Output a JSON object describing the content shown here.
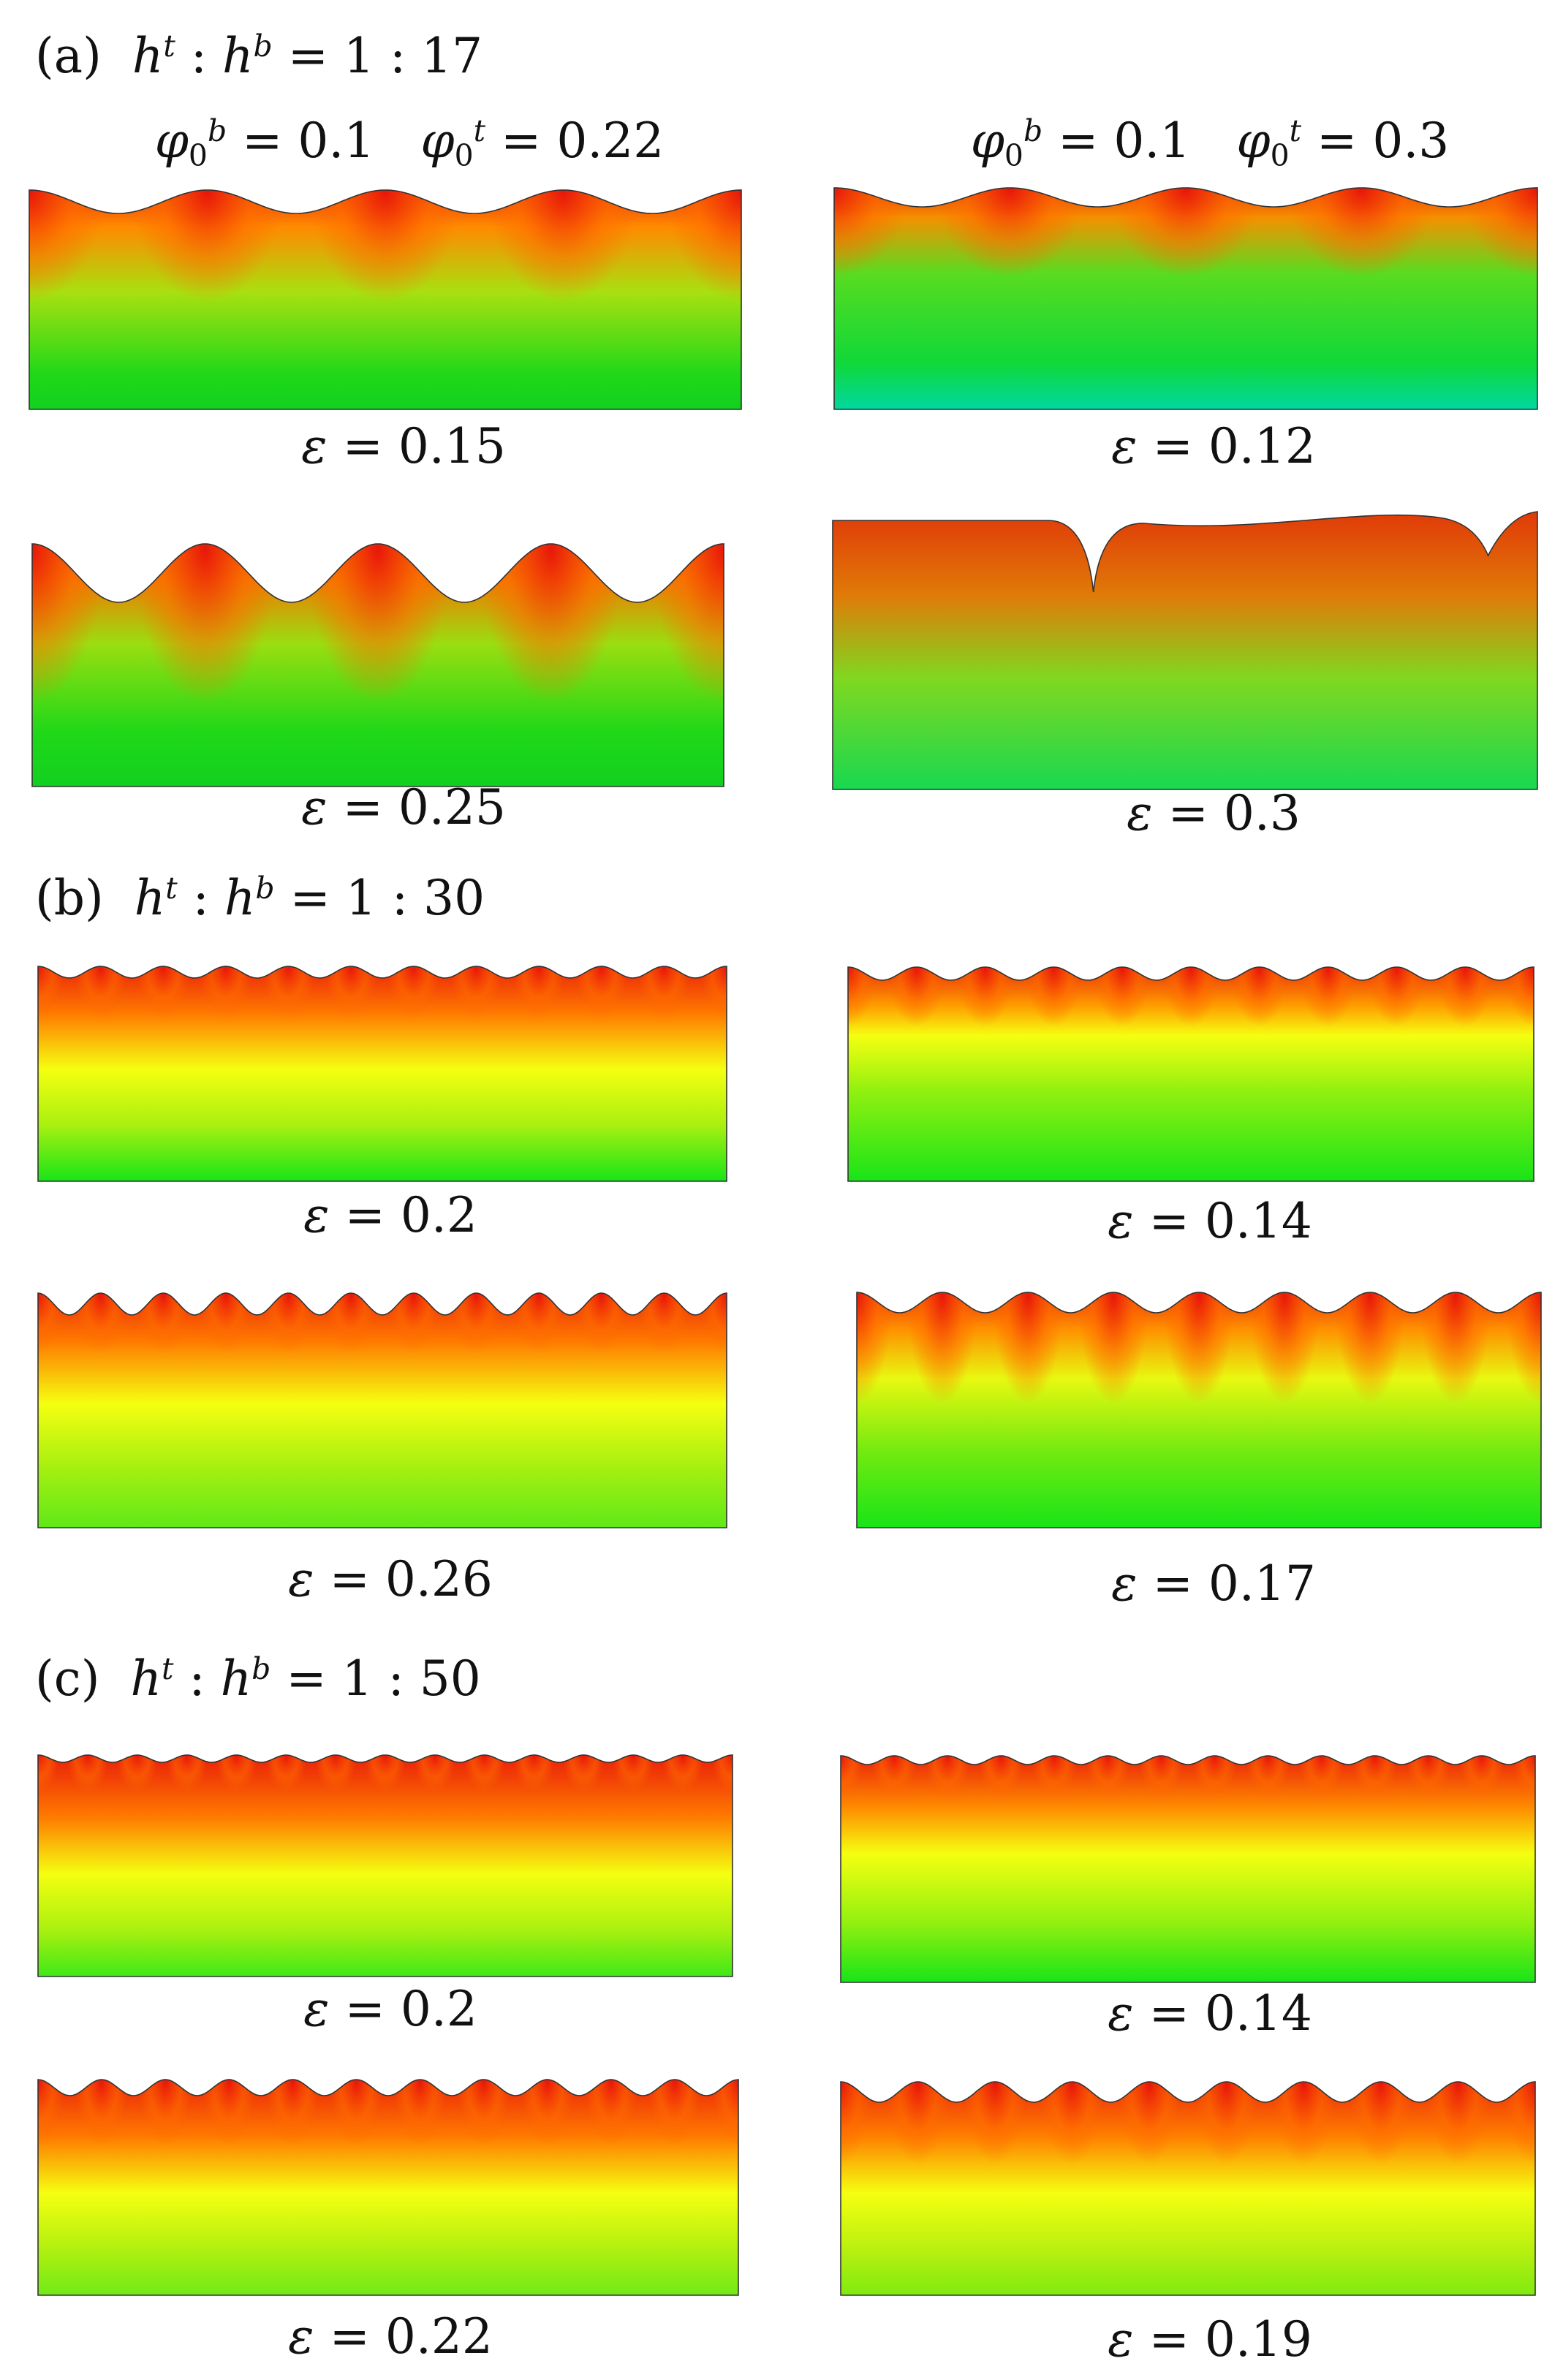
{
  "sections": [
    {
      "label": "(a)",
      "ratio": "1 : 17"
    },
    {
      "label": "(b)",
      "ratio": "1 : 30"
    },
    {
      "label": "(c)",
      "ratio": "1 : 50"
    }
  ],
  "columns": [
    {
      "phi_b": "0.1",
      "phi_t": "0.22"
    },
    {
      "phi_b": "0.1",
      "phi_t": "0.3"
    }
  ],
  "symbols": {
    "h": "h",
    "t": "t",
    "b": "b",
    "phi": "φ",
    "zero": "0",
    "eps": "ε",
    "eq": "=",
    "colon": ":"
  },
  "panels": [
    {
      "strain": "0.15"
    },
    {
      "strain": "0.12"
    },
    {
      "strain": "0.25"
    },
    {
      "strain": "0.3"
    },
    {
      "strain": "0.2"
    },
    {
      "strain": "0.14"
    },
    {
      "strain": "0.26"
    },
    {
      "strain": "0.17"
    },
    {
      "strain": "0.2"
    },
    {
      "strain": "0.14"
    },
    {
      "strain": "0.22"
    },
    {
      "strain": "0.19"
    }
  ],
  "colors": {
    "red": "#e8140a",
    "yellow": "#f5ff10",
    "green": "#18e418",
    "teal": "#00d8a0",
    "outline": "#333333"
  }
}
